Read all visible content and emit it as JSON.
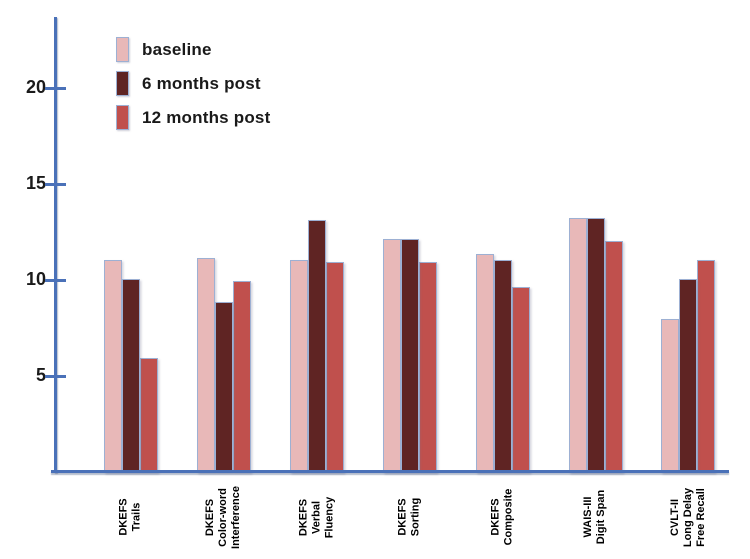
{
  "chart_data": {
    "type": "bar",
    "title": "",
    "xlabel": "",
    "ylabel": "",
    "categories": [
      {
        "label": "DKEFS Trails",
        "lines": [
          "DKEFS",
          "Trails"
        ]
      },
      {
        "label": "DKEFS Color-word Interference",
        "lines": [
          "DKEFS",
          "Color-word",
          "Interference"
        ]
      },
      {
        "label": "DKEFS Verbal Fluency",
        "lines": [
          "DKEFS",
          "Verbal",
          "Fluency"
        ]
      },
      {
        "label": "DKEFS Sorting",
        "lines": [
          "DKEFS",
          "Sorting"
        ]
      },
      {
        "label": "DKEFS Composite",
        "lines": [
          "DKEFS",
          "Composite"
        ]
      },
      {
        "label": "WAIS-III Digit Span",
        "lines": [
          "WAIS-III",
          "Digit Span"
        ]
      },
      {
        "label": "CVLT-II Long Delay Free Recall",
        "lines": [
          "CVLT-II",
          "Long Delay",
          "Free Recall"
        ]
      }
    ],
    "series": [
      {
        "name": "baseline",
        "color": "#e8b8b8",
        "values": [
          11.1,
          11.2,
          11.1,
          12.2,
          11.4,
          13.3,
          8.0
        ]
      },
      {
        "name": "6 months post",
        "color": "#5f2423",
        "values": [
          10.1,
          8.9,
          13.2,
          12.2,
          11.1,
          13.3,
          10.1
        ]
      },
      {
        "name": "12 months post",
        "color": "#c0504d",
        "values": [
          6.0,
          10.0,
          11.0,
          11.0,
          9.7,
          12.1,
          11.1
        ]
      }
    ],
    "y_ticks": [
      5,
      10,
      15,
      20
    ],
    "ylim": [
      0,
      23.5
    ],
    "grid": false,
    "legend_position": "top-left-inside",
    "colors": {
      "axis": "#4a71b8",
      "bar_outline": "#9db0d3",
      "tick_label": "#1a1a1a",
      "category_label": "#000000",
      "background": "#ffffff"
    }
  }
}
